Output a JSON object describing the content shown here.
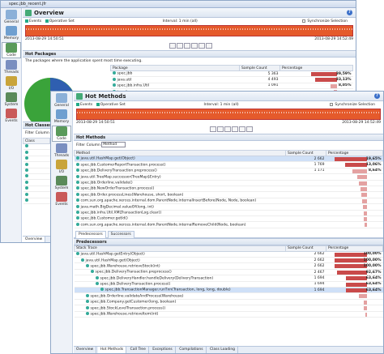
{
  "w1": {
    "title": "spec.jbb_recent.jfr",
    "sidebar": [
      "General",
      "Memory",
      "Code",
      "Threads",
      "I/O",
      "System",
      "Events"
    ],
    "header": "Overview",
    "events_label": "Events",
    "operative_label": "Operative Set",
    "interval": "Interval: 1 min (all)",
    "sync_label": "Synchronize Selection",
    "date_start": "2013-08-29 14:50:51",
    "date_end": "2013-08-29 14:52:49",
    "hot_packages": "Hot Packages",
    "hot_packages_desc": "The packages where the application spent most time executing.",
    "pkg_columns": [
      "Package",
      "Sample Count",
      "Percentage"
    ],
    "packages": [
      {
        "name": "spec.jbb",
        "count": "5 363",
        "pct": "39,59%",
        "bar": 0.8
      },
      {
        "name": "java.util",
        "count": "4 493",
        "pct": "33,13%",
        "bar": 0.67
      },
      {
        "name": "spec.jbb.infra.Util",
        "count": "1 091",
        "pct": "8,05%",
        "bar": 0.18
      },
      {
        "name": "java.lang",
        "count": "",
        "pct": "",
        "bar": 0.1
      }
    ],
    "hot_classes": "Hot Classes",
    "filter_column": "Filter Column",
    "class_col": "Class",
    "classes": [
      "",
      "",
      "",
      "",
      "",
      "",
      "",
      "",
      "",
      ""
    ],
    "bottom_tabs": [
      "Overview"
    ]
  },
  "w2": {
    "sidebar": [
      "General",
      "Memory",
      "Code",
      "Threads",
      "I/O",
      "System",
      "Events"
    ],
    "header": "Hot Methods",
    "events_label": "Events",
    "operative_label": "Operative Set",
    "interval": "Interval: 1 min (all)",
    "sync_label": "Synchronize Selection",
    "date_start": "2013-08-29 14:50:51",
    "date_end": "2013-08-29 14:52:49",
    "section": "Hot Methods",
    "filter_label": "Filter Column",
    "filter_value": "Method",
    "method_columns": [
      "Method",
      "Sample Count",
      "Percentage"
    ],
    "methods": [
      {
        "name": "java.util.HashMap.get(Object)",
        "count": "2 662",
        "pct": "19,65%",
        "bar": 1.0
      },
      {
        "name": "spec.jbb.CustomerReportTransaction.process()",
        "count": "1 769",
        "pct": "13,06%",
        "bar": 0.66
      },
      {
        "name": "spec.jbb.DeliveryTransaction.preprocess()",
        "count": "1 171",
        "pct": "8,64%",
        "bar": 0.44
      },
      {
        "name": "java.util.TreeMap.successor(TreeMap$Entry)",
        "count": "",
        "pct": "",
        "bar": 0.3
      },
      {
        "name": "spec.jbb.Orderline.validate()",
        "count": "",
        "pct": "",
        "bar": 0.25
      },
      {
        "name": "spec.jbb.NewOrderTransaction.process()",
        "count": "",
        "pct": "",
        "bar": 0.2
      },
      {
        "name": "spec.jbb.Order.processLines(Warehouse, short, boolean)",
        "count": "",
        "pct": "",
        "bar": 0.16
      },
      {
        "name": "com.sun.org.apache.xerces.internal.dom.ParentNode.internalInsertBefore(Node, Node, boolean)",
        "count": "",
        "pct": "",
        "bar": 0.13
      },
      {
        "name": "java.math.BigDecimal.valueOf(long, int)",
        "count": "",
        "pct": "",
        "bar": 0.11
      },
      {
        "name": "spec.jbb.infra.Util.XMLTransactionLog.clear()",
        "count": "",
        "pct": "",
        "bar": 0.09
      },
      {
        "name": "spec.jbb.Customer.getId()",
        "count": "",
        "pct": "",
        "bar": 0.08
      },
      {
        "name": "com.sun.org.apache.xerces.internal.dom.ParentNode.internalRemoveChild(Node, boolean)",
        "count": "",
        "pct": "",
        "bar": 0.06
      }
    ],
    "sub_tabs": [
      "Predecessors",
      "Successors"
    ],
    "pred_section": "Predecessors",
    "pred_columns": [
      "Stack Trace",
      "Sample Count",
      "Percentage"
    ],
    "predecessors": [
      {
        "name": "java.util.HashMap.getEntry(Object)",
        "count": "2 662",
        "pct": "100,00%",
        "bar": 1.0,
        "indent": 0
      },
      {
        "name": "java.util.HashMap.get(Object)",
        "count": "2 662",
        "pct": "100,00%",
        "bar": 1.0,
        "indent": 1
      },
      {
        "name": "spec.jbb.Warehouse.retrieveStock(int)",
        "count": "2 662",
        "pct": "100,00%",
        "bar": 1.0,
        "indent": 2
      },
      {
        "name": "spec.jbb.DeliveryTransaction.preprocess()",
        "count": "2 467",
        "pct": "92,67%",
        "bar": 0.92,
        "indent": 3
      },
      {
        "name": "spec.jbb.DeliveryHandler.handleDelivery(DeliveryTransaction)",
        "count": "1 694",
        "pct": "63,64%",
        "bar": 0.64,
        "indent": 4
      },
      {
        "name": "spec.jbb.DeliveryTransaction.process()",
        "count": "1 694",
        "pct": "63,64%",
        "bar": 0.64,
        "indent": 4
      },
      {
        "name": "spec.jbb.TransactionManager.runTxn(Transaction, long, long, double)",
        "count": "1 694",
        "pct": "63,64%",
        "bar": 0.64,
        "indent": 5
      },
      {
        "name": "spec.jbb.Orderline.validateAndProcess(Warehouse)",
        "count": "",
        "pct": "",
        "bar": 0.25,
        "indent": 2
      },
      {
        "name": "spec.jbb.Company.getCustomer(long, boolean)",
        "count": "",
        "pct": "",
        "bar": 0.1,
        "indent": 2
      },
      {
        "name": "spec.jbb.StockLevelTransaction.process()",
        "count": "",
        "pct": "",
        "bar": 0.08,
        "indent": 2
      },
      {
        "name": "spec.jbb.Warehouse.retrieveItem(int)",
        "count": "",
        "pct": "",
        "bar": 0.05,
        "indent": 2
      }
    ],
    "bottom_tabs": [
      "Overview",
      "Hot Methods",
      "Call Tree",
      "Exceptions",
      "Compilations",
      "Class Loading"
    ]
  },
  "colors": {
    "timeline": "#e55a2b",
    "bar": "#e4a1a1",
    "bar_dark": "#c94a4a"
  }
}
